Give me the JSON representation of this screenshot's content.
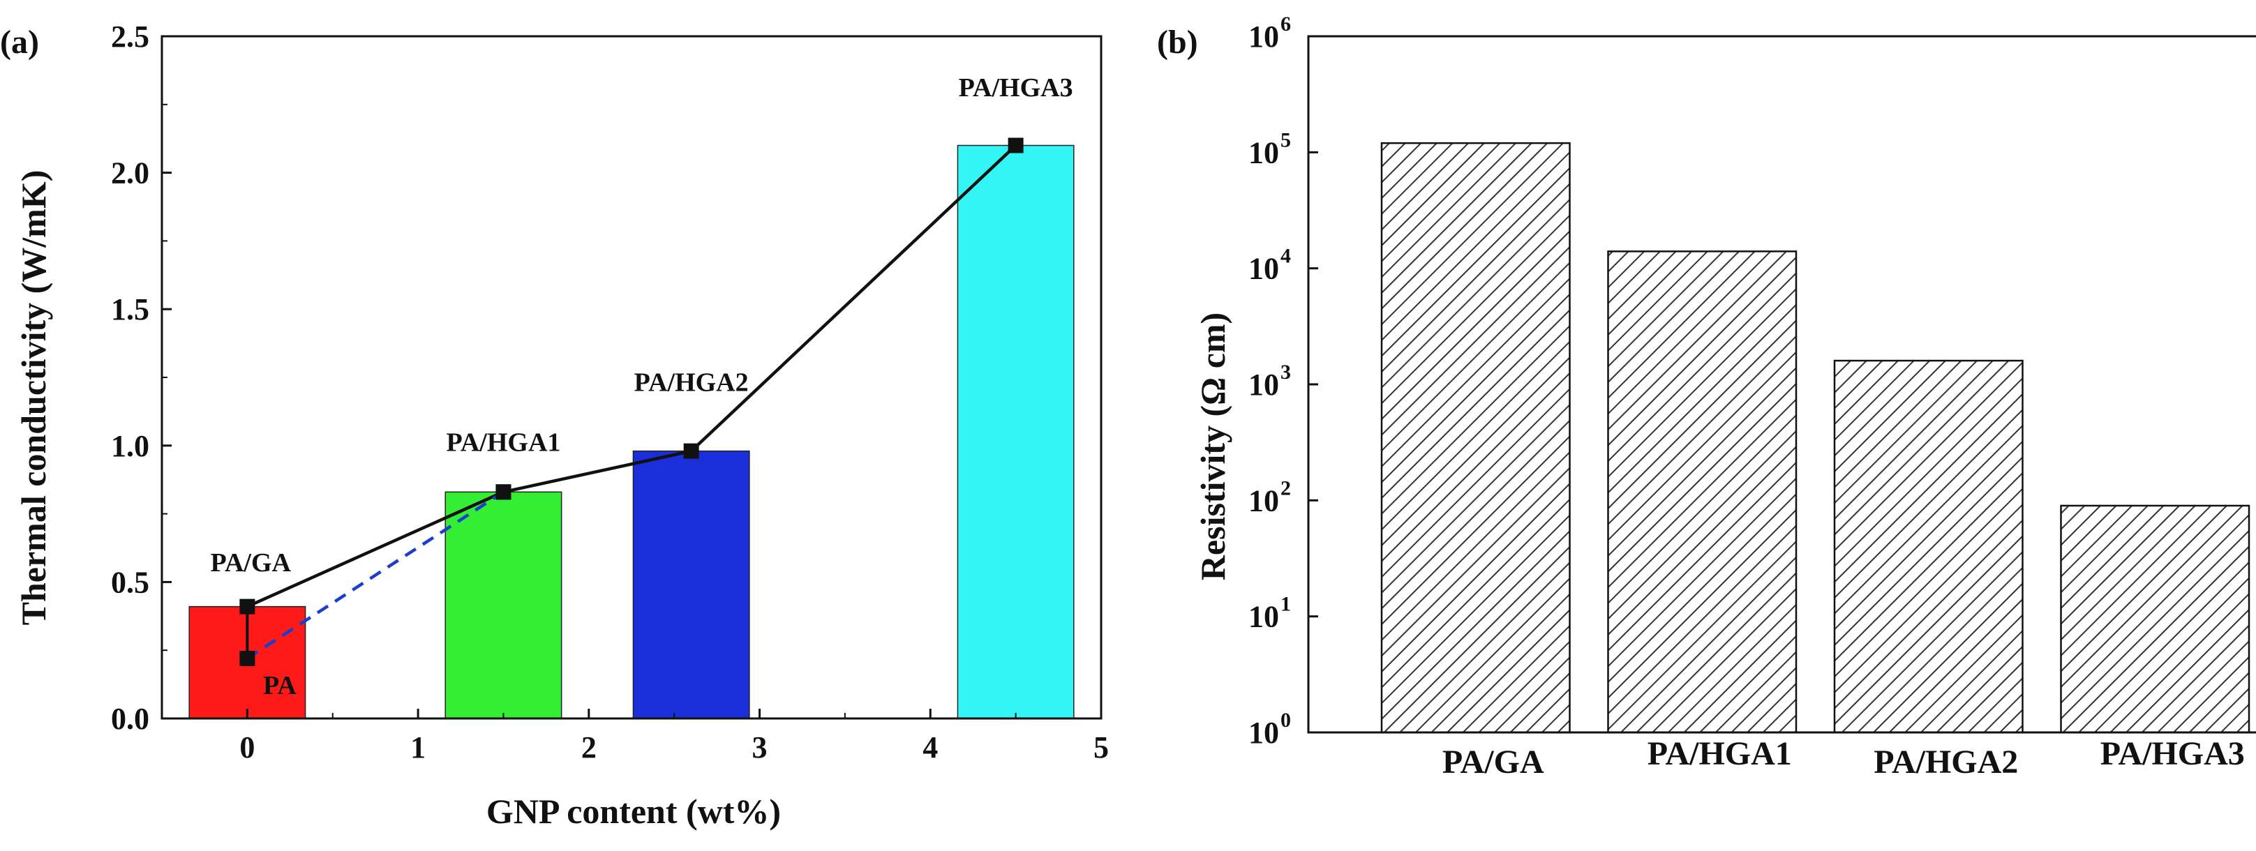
{
  "chart_data": [
    {
      "panel": "(a)",
      "type": "bar",
      "xlabel": "GNP content (wt%)",
      "ylabel": "Thermal conductivity (W/mK)",
      "xlim": [
        -0.5,
        5
      ],
      "ylim": [
        0,
        2.5
      ],
      "xticks": [
        0,
        1,
        2,
        3,
        4,
        5
      ],
      "yticks": [
        0.0,
        0.5,
        1.0,
        1.5,
        2.0,
        2.5
      ],
      "bars": [
        {
          "label": "PA/GA",
          "x": 0,
          "value": 0.41,
          "color": "#ff1a1a"
        },
        {
          "label": "PA/HGA1",
          "x": 1.5,
          "value": 0.83,
          "color": "#33ee33"
        },
        {
          "label": "PA/HGA2",
          "x": 2.6,
          "value": 0.98,
          "color": "#1a2fd9"
        },
        {
          "label": "PA/HGA3",
          "x": 4.5,
          "value": 2.1,
          "color": "#33f5f5"
        }
      ],
      "bar_width": 0.68,
      "series": [
        {
          "name": "PA/HGA",
          "style": "solid",
          "color": "#111111",
          "x": [
            0,
            1.5,
            2.6,
            4.5
          ],
          "values": [
            0.41,
            0.83,
            0.98,
            2.1
          ]
        },
        {
          "name": "PA",
          "style": "dashed",
          "color": "#1a3fcc",
          "x": [
            0,
            1.5
          ],
          "values": [
            0.22,
            0.83
          ]
        }
      ],
      "link": {
        "x": 0,
        "from": 0.22,
        "to": 0.41
      },
      "annotations": [
        {
          "text": "PA/GA",
          "x": 0.02,
          "y": 0.54
        },
        {
          "text": "PA",
          "x": 0.19,
          "y": 0.09
        },
        {
          "text": "PA/HGA1",
          "x": 1.5,
          "y": 0.98
        },
        {
          "text": "PA/HGA2",
          "x": 2.6,
          "y": 1.2
        },
        {
          "text": "PA/HGA3",
          "x": 4.5,
          "y": 2.28
        }
      ]
    },
    {
      "panel": "(b)",
      "type": "bar",
      "scale": "log",
      "xlabel": "",
      "ylabel": "Resistivity (Ω cm)",
      "ylim": [
        1,
        1000000
      ],
      "ytick_exponents": [
        "0",
        "1",
        "2",
        "3",
        "4",
        "5",
        "6"
      ],
      "ytick_base": "10",
      "categories": [
        "PA/GA",
        "PA/HGA1",
        "PA/HGA2",
        "PA/HGA3"
      ],
      "values": [
        120000,
        14000,
        1600,
        90
      ],
      "fill": "hatched",
      "color": "#333333"
    }
  ]
}
